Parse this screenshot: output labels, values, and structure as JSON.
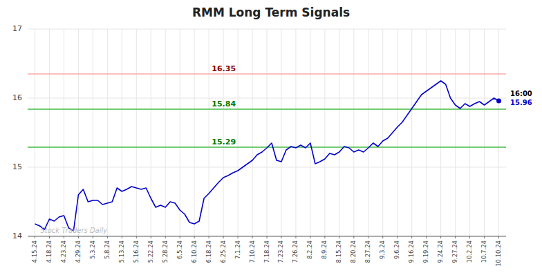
{
  "chart_data": {
    "type": "line",
    "title": "RMM Long Term Signals",
    "color": "#0000cc",
    "grid": true,
    "categories": [
      "4.15.24",
      null,
      null,
      "4.18.24",
      null,
      null,
      "4.23.24",
      null,
      null,
      "4.29.24",
      null,
      null,
      "5.3.24",
      null,
      null,
      "5.8.24",
      null,
      null,
      "5.13.24",
      null,
      null,
      "5.16.24",
      null,
      null,
      "5.22.24",
      null,
      null,
      "5.28.24",
      null,
      null,
      "6.5.24",
      null,
      null,
      "6.10.24",
      null,
      null,
      "6.18.24",
      null,
      null,
      "6.25.24",
      null,
      null,
      "7.1.24",
      null,
      null,
      "7.10.24",
      null,
      null,
      "7.18.24",
      null,
      null,
      "7.23.24",
      null,
      null,
      "7.26.24",
      null,
      null,
      "8.2.24",
      null,
      null,
      "8.9.24",
      null,
      null,
      "8.15.24",
      null,
      null,
      "8.20.24",
      null,
      null,
      "8.27.24",
      null,
      null,
      "9.3.24",
      null,
      null,
      "9.6.24",
      null,
      null,
      "9.16.24",
      null,
      null,
      "9.19.24",
      null,
      null,
      "9.24.24",
      null,
      null,
      "9.27.24",
      null,
      null,
      "10.2.24",
      null,
      null,
      "10.7.24",
      null,
      null,
      "10.10.24"
    ],
    "values": [
      14.18,
      14.15,
      14.1,
      14.25,
      14.22,
      14.28,
      14.3,
      14.12,
      14.08,
      14.6,
      14.68,
      14.5,
      14.52,
      14.52,
      14.46,
      14.48,
      14.5,
      14.7,
      14.65,
      14.68,
      14.72,
      14.7,
      14.68,
      14.7,
      14.55,
      14.42,
      14.45,
      14.42,
      14.5,
      14.48,
      14.38,
      14.32,
      14.2,
      14.18,
      14.22,
      14.55,
      14.62,
      14.7,
      14.78,
      14.85,
      14.88,
      14.92,
      14.95,
      15.0,
      15.05,
      15.1,
      15.18,
      15.22,
      15.28,
      15.35,
      15.1,
      15.08,
      15.25,
      15.3,
      15.28,
      15.32,
      15.28,
      15.35,
      15.05,
      15.08,
      15.12,
      15.2,
      15.18,
      15.22,
      15.3,
      15.28,
      15.22,
      15.25,
      15.22,
      15.28,
      15.35,
      15.3,
      15.38,
      15.42,
      15.5,
      15.58,
      15.65,
      15.75,
      15.85,
      15.95,
      16.05,
      16.1,
      16.15,
      16.2,
      16.25,
      16.2,
      16.0,
      15.9,
      15.85,
      15.92,
      15.88,
      15.92,
      15.95,
      15.9,
      15.95,
      16.0,
      15.96
    ],
    "ylim": [
      14,
      17
    ],
    "yticks": [
      14,
      15,
      16,
      17
    ],
    "hlines": [
      {
        "value": 16.35,
        "label": "16.35",
        "color": "#ffaaaa",
        "label_color": "#880000"
      },
      {
        "value": 15.84,
        "label": "15.84",
        "color": "#44bb44",
        "label_color": "#007700"
      },
      {
        "value": 15.29,
        "label": "15.29",
        "color": "#44bb44",
        "label_color": "#007700"
      }
    ],
    "annotations": [
      {
        "text": "16:00"
      },
      {
        "text": "15.96",
        "value": 15.96
      }
    ],
    "watermark": "Stock Traders Daily"
  }
}
